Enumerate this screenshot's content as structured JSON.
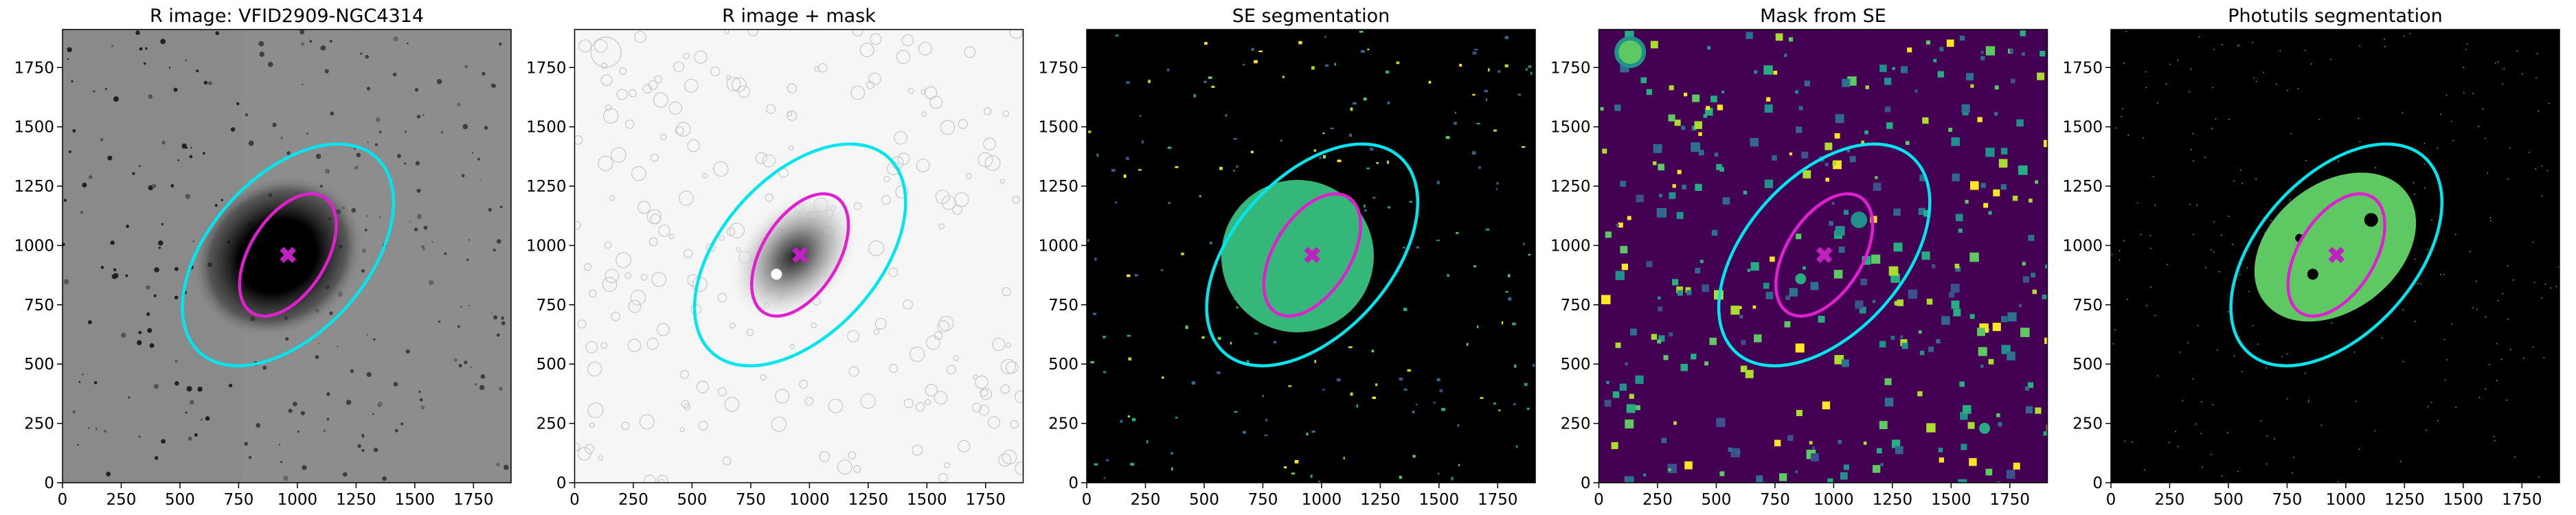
{
  "chart_data": [
    {
      "type": "image",
      "title": "R image: VFID2909-NGC4314",
      "background": "#8a8a8a",
      "xlim": [
        0,
        1910
      ],
      "ylim": [
        0,
        1910
      ],
      "xticks": [
        0,
        250,
        500,
        750,
        1000,
        1250,
        1500,
        1750
      ],
      "yticks": [
        0,
        250,
        500,
        750,
        1000,
        1250,
        1500,
        1750
      ],
      "ellipses": [
        {
          "x": 960,
          "y": 960,
          "a": 560,
          "b": 330,
          "angle": 48,
          "color": "#00e5ee"
        },
        {
          "x": 960,
          "y": 960,
          "a": 290,
          "b": 160,
          "angle": 58,
          "color": "#e020d0"
        }
      ],
      "center": {
        "x": 960,
        "y": 960,
        "color": "#c020c0"
      }
    },
    {
      "type": "image",
      "title": "R image + mask",
      "background": "#f6f6f6",
      "xlim": [
        0,
        1910
      ],
      "ylim": [
        0,
        1910
      ],
      "xticks": [
        0,
        250,
        500,
        750,
        1000,
        1250,
        1500,
        1750
      ],
      "yticks": [
        0,
        250,
        500,
        750,
        1000,
        1250,
        1500,
        1750
      ],
      "ellipses": [
        {
          "x": 960,
          "y": 960,
          "a": 560,
          "b": 330,
          "angle": 48,
          "color": "#00e5ee"
        },
        {
          "x": 960,
          "y": 960,
          "a": 290,
          "b": 160,
          "angle": 58,
          "color": "#e020d0"
        }
      ],
      "center": {
        "x": 960,
        "y": 960,
        "color": "#c020c0"
      }
    },
    {
      "type": "image",
      "title": "SE segmentation",
      "background": "#000000",
      "xlim": [
        0,
        1910
      ],
      "ylim": [
        0,
        1910
      ],
      "xticks": [
        0,
        250,
        500,
        750,
        1000,
        1250,
        1500,
        1750
      ],
      "yticks": [
        0,
        250,
        500,
        750,
        1000,
        1250,
        1500,
        1750
      ],
      "ellipses": [
        {
          "x": 960,
          "y": 960,
          "a": 560,
          "b": 330,
          "angle": 48,
          "color": "#00e5ee"
        },
        {
          "x": 960,
          "y": 960,
          "a": 290,
          "b": 160,
          "angle": 58,
          "color": "#e020d0"
        }
      ],
      "center": {
        "x": 960,
        "y": 960,
        "color": "#c020c0"
      }
    },
    {
      "type": "image",
      "title": "Mask from SE",
      "background": "#440154",
      "xlim": [
        0,
        1910
      ],
      "ylim": [
        0,
        1910
      ],
      "xticks": [
        0,
        250,
        500,
        750,
        1000,
        1250,
        1500,
        1750
      ],
      "yticks": [
        0,
        250,
        500,
        750,
        1000,
        1250,
        1500,
        1750
      ],
      "ellipses": [
        {
          "x": 960,
          "y": 960,
          "a": 560,
          "b": 330,
          "angle": 48,
          "color": "#00e5ee"
        },
        {
          "x": 960,
          "y": 960,
          "a": 290,
          "b": 160,
          "angle": 58,
          "color": "#e020d0"
        }
      ],
      "center": {
        "x": 960,
        "y": 960,
        "color": "#c020c0"
      }
    },
    {
      "type": "image",
      "title": "Photutils segmentation",
      "background": "#000000",
      "xlim": [
        0,
        1910
      ],
      "ylim": [
        0,
        1910
      ],
      "xticks": [
        0,
        250,
        500,
        750,
        1000,
        1250,
        1500,
        1750
      ],
      "yticks": [
        0,
        250,
        500,
        750,
        1000,
        1250,
        1500,
        1750
      ],
      "ellipses": [
        {
          "x": 960,
          "y": 960,
          "a": 560,
          "b": 330,
          "angle": 48,
          "color": "#00e5ee"
        },
        {
          "x": 960,
          "y": 960,
          "a": 290,
          "b": 160,
          "angle": 58,
          "color": "#e020d0"
        }
      ],
      "center": {
        "x": 960,
        "y": 960,
        "color": "#c020c0"
      }
    }
  ]
}
